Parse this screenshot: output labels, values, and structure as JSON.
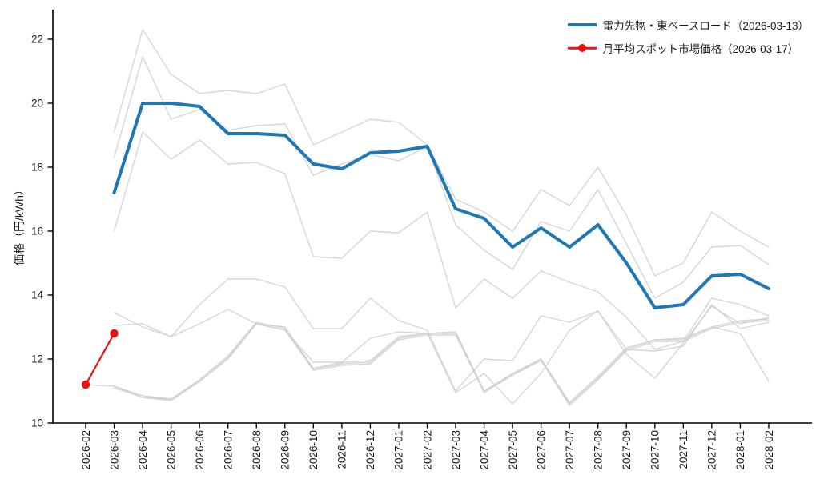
{
  "chart": {
    "ylabel": "価格（円/kWh）",
    "legend": [
      {
        "label": "電力先物・東ベースロード（2026-03-13）",
        "color": "#1f77b4",
        "marker": "line"
      },
      {
        "label": "月平均スポット市場価格（2026-03-17）",
        "color": "#ee1111",
        "marker": "line-dot"
      }
    ]
  },
  "chart_data": {
    "type": "line",
    "title": "",
    "xlabel": "",
    "ylabel": "価格（円/kWh）",
    "x_categories": [
      "2026-02",
      "2026-03",
      "2026-04",
      "2026-05",
      "2026-06",
      "2026-07",
      "2026-08",
      "2026-09",
      "2026-10",
      "2026-11",
      "2026-12",
      "2027-01",
      "2027-02",
      "2027-03",
      "2027-04",
      "2027-05",
      "2027-06",
      "2027-07",
      "2027-08",
      "2027-09",
      "2027-10",
      "2027-11",
      "2027-12",
      "2028-01",
      "2028-02"
    ],
    "ylim": [
      10,
      22.9
    ],
    "yticks": [
      10,
      12,
      14,
      16,
      18,
      20,
      22
    ],
    "grid": false,
    "legend_position": "upper right",
    "colors": {
      "futures": "#1f77b4",
      "spot": "#ee1111",
      "historical": "#cfcfcf",
      "axis": "#000000"
    },
    "series": [
      {
        "name": "電力先物・東ベースロード（2026-03-13）",
        "role": "futures",
        "color": "#1f77b4",
        "width": 4,
        "marker": "none",
        "start_index": 1,
        "values": [
          17.2,
          20.0,
          20.0,
          19.9,
          19.05,
          19.05,
          19.0,
          18.1,
          17.95,
          18.45,
          18.5,
          18.65,
          16.7,
          16.4,
          15.5,
          16.1,
          15.5,
          16.2,
          15.0,
          13.6,
          13.7,
          14.6,
          14.65,
          14.2
        ]
      },
      {
        "name": "月平均スポット市場価格（2026-03-17）",
        "role": "spot",
        "color": "#ee1111",
        "width": 2.2,
        "marker": "circle",
        "start_index": 0,
        "values": [
          11.2,
          12.8
        ]
      }
    ],
    "background_series": [
      {
        "name": "historical-curve-1",
        "start_index": 1,
        "values": [
          19.1,
          22.3,
          20.9,
          20.3,
          20.4,
          20.3,
          20.6,
          18.7,
          19.1,
          19.5,
          19.4,
          18.7,
          17.0,
          16.6,
          16.0,
          17.3,
          16.8,
          18.0,
          16.5,
          14.6,
          15.0,
          16.6,
          16.0,
          15.5
        ]
      },
      {
        "name": "historical-curve-2",
        "start_index": 1,
        "values": [
          18.3,
          21.45,
          19.5,
          19.8,
          19.15,
          19.3,
          19.35,
          17.75,
          18.1,
          18.4,
          18.2,
          18.65,
          16.2,
          15.4,
          14.8,
          16.3,
          16.0,
          17.3,
          15.6,
          13.9,
          14.4,
          15.5,
          15.55,
          14.95
        ]
      },
      {
        "name": "historical-curve-3",
        "start_index": 1,
        "values": [
          16.0,
          19.1,
          18.25,
          18.85,
          18.1,
          18.15,
          17.8,
          15.2,
          15.15,
          16.0,
          15.95,
          16.6,
          13.6,
          14.5,
          13.9,
          14.75,
          14.4,
          14.1,
          13.3,
          12.3,
          12.55,
          13.9,
          13.7,
          13.35
        ]
      },
      {
        "name": "historical-curve-4",
        "start_index": 1,
        "values": [
          13.45,
          13.0,
          12.7,
          13.7,
          14.5,
          14.5,
          14.25,
          12.95,
          12.95,
          13.9,
          13.2,
          12.9,
          11.0,
          12.0,
          11.95,
          13.35,
          13.15,
          13.5,
          12.15,
          11.4,
          12.5,
          13.65,
          13.1,
          13.3
        ]
      },
      {
        "name": "historical-curve-5",
        "start_index": 1,
        "values": [
          13.05,
          13.1,
          12.7,
          13.1,
          13.55,
          13.1,
          12.9,
          11.9,
          11.9,
          12.65,
          12.85,
          12.8,
          10.95,
          11.55,
          10.6,
          11.55,
          12.9,
          13.5,
          12.3,
          12.25,
          12.4,
          13.7,
          12.95,
          13.15
        ]
      },
      {
        "name": "historical-curve-6",
        "start_index": 0,
        "values": [
          11.2,
          11.15,
          10.8,
          10.75,
          11.3,
          12.05,
          13.1,
          13.0,
          11.7,
          11.85,
          11.9,
          12.65,
          12.8,
          12.8,
          11.0,
          11.5,
          12.0,
          10.6,
          11.4,
          12.3,
          12.6,
          12.6,
          13.0,
          13.2,
          13.25
        ]
      },
      {
        "name": "historical-curve-7",
        "start_index": 1,
        "values": [
          11.1,
          10.8,
          10.7,
          11.3,
          12.0,
          13.1,
          12.9,
          11.65,
          11.8,
          11.85,
          12.6,
          12.75,
          12.75,
          10.95,
          11.5,
          11.95,
          10.55,
          11.35,
          12.25,
          12.55,
          12.55,
          12.95,
          13.15,
          13.2
        ]
      },
      {
        "name": "historical-curve-8",
        "start_index": 1,
        "values": [
          11.15,
          10.85,
          10.75,
          11.35,
          12.1,
          13.15,
          12.95,
          11.7,
          11.9,
          11.95,
          12.7,
          12.8,
          12.85,
          11.0,
          11.55,
          12.0,
          10.65,
          11.45,
          12.35,
          12.6,
          12.65,
          13.0,
          12.8,
          11.3
        ]
      }
    ]
  }
}
